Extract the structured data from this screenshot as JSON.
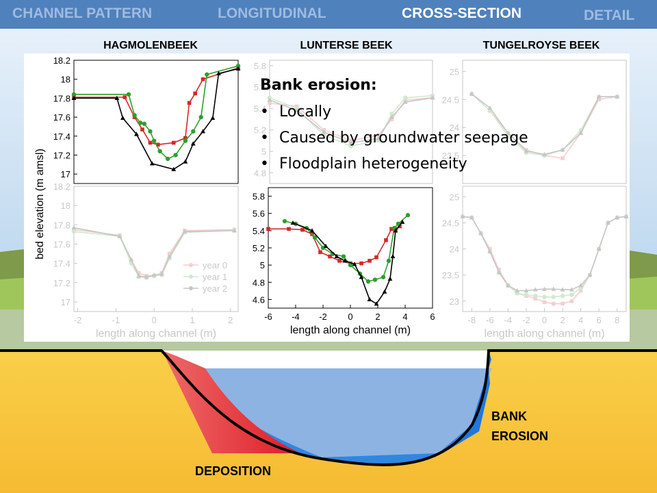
{
  "tabs": [
    {
      "label": "CHANNEL PATTERN",
      "active": false
    },
    {
      "label": "LONGITUDINAL",
      "active": false
    },
    {
      "label": "CROSS-SECTION",
      "active": true
    },
    {
      "label": "DETAIL",
      "active": false
    }
  ],
  "column_titles": [
    "HAGMOLENBEEK",
    "LUNTERSE BEEK",
    "TUNGELROYSE BEEK"
  ],
  "callout": {
    "title": "Bank erosion:",
    "bullets": [
      "Locally",
      "Caused by groundwater seepage",
      "Floodplain heterogeneity"
    ]
  },
  "diagram_labels": {
    "bank": "BANK",
    "erosion": "EROSION",
    "deposition": "DEPOSITION"
  },
  "colors": {
    "tab_bar": "#4f81bd",
    "year0": "#d62728",
    "year1": "#2ca02c",
    "year2": "#000000",
    "water": "#8db3e2",
    "deposition": "#e8383d",
    "erosion": "#1f77e0",
    "sand": "#f7c23c"
  },
  "chart_data": [
    {
      "type": "line",
      "name": "HAGMOLENBEEK",
      "faded": false,
      "ylabel": "bed elevation (m amsl)",
      "xlabel": "",
      "xlim": [
        -2.1,
        2.1
      ],
      "ylim": [
        16.9,
        18.2
      ],
      "xticks": [],
      "yticks": [
        17,
        17.2,
        17.4,
        17.6,
        17.8,
        18,
        18.2
      ],
      "series": [
        {
          "name": "year 0",
          "x": [
            -2.1,
            -0.8,
            -0.55,
            -0.35,
            -0.15,
            0.05,
            0.45,
            0.75,
            0.85,
            1.0,
            1.2,
            2.1
          ],
          "y": [
            17.81,
            17.81,
            17.6,
            17.47,
            17.33,
            17.31,
            17.33,
            17.38,
            17.75,
            17.85,
            18.0,
            18.12
          ]
        },
        {
          "name": "year 1",
          "x": [
            -2.1,
            -0.7,
            -0.55,
            -0.4,
            -0.3,
            -0.15,
            -0.05,
            0.1,
            0.3,
            0.5,
            0.75,
            0.95,
            1.15,
            1.3,
            2.1
          ],
          "y": [
            17.84,
            17.84,
            17.62,
            17.54,
            17.53,
            17.45,
            17.35,
            17.24,
            17.16,
            17.2,
            17.35,
            17.45,
            17.6,
            18.05,
            18.14
          ]
        },
        {
          "name": "year 2",
          "x": [
            -2.1,
            -1.0,
            -0.85,
            -0.5,
            -0.1,
            0.45,
            0.75,
            0.95,
            1.2,
            1.45,
            1.6,
            2.1
          ],
          "y": [
            17.8,
            17.8,
            17.59,
            17.42,
            17.11,
            17.05,
            17.13,
            17.32,
            17.45,
            17.59,
            18.06,
            18.11
          ]
        }
      ]
    },
    {
      "type": "line",
      "name": "LUNTERSE BEEK top",
      "faded": true,
      "ylabel": "",
      "xlabel": "",
      "xlim": [
        -6,
        6
      ],
      "ylim": [
        4.7,
        5.85
      ],
      "xticks": [],
      "yticks": [
        4.8,
        5,
        5.2,
        5.4,
        5.6,
        5.8
      ],
      "series": [
        {
          "name": "year 0",
          "x": [
            -6,
            -4,
            -2,
            0,
            2,
            3,
            4,
            6
          ],
          "y": [
            5.45,
            5.42,
            5.2,
            5.1,
            5.15,
            5.3,
            5.48,
            5.5
          ]
        },
        {
          "name": "year 1",
          "x": [
            -6,
            -4,
            -2,
            0,
            2,
            3,
            4,
            6
          ],
          "y": [
            5.5,
            5.4,
            5.15,
            5.05,
            5.1,
            5.35,
            5.5,
            5.52
          ]
        },
        {
          "name": "year 2",
          "x": [
            -6,
            -4,
            -2,
            0,
            2,
            3,
            4,
            6
          ],
          "y": [
            5.48,
            5.38,
            5.18,
            5.08,
            5.12,
            5.32,
            5.46,
            5.5
          ]
        }
      ]
    },
    {
      "type": "line",
      "name": "TUNGELROYSE BEEK top",
      "faded": true,
      "ylabel": "",
      "xlabel": "",
      "xlim": [
        -9,
        9
      ],
      "ylim": [
        23.0,
        25.2
      ],
      "xticks": [],
      "yticks": [
        23.5,
        24,
        24.5,
        25
      ],
      "series": [
        {
          "name": "year 0",
          "x": [
            -8,
            -6,
            -4,
            -2,
            0,
            2,
            4,
            6,
            8
          ],
          "y": [
            24.6,
            24.3,
            23.9,
            23.6,
            23.5,
            23.45,
            23.9,
            24.5,
            24.55
          ]
        },
        {
          "name": "year 1",
          "x": [
            -8,
            -6,
            -4,
            -2,
            0,
            2,
            4,
            6,
            8
          ],
          "y": [
            24.6,
            24.3,
            23.85,
            23.55,
            23.5,
            23.6,
            23.95,
            24.55,
            24.55
          ]
        },
        {
          "name": "year 2",
          "x": [
            -8,
            -6,
            -4,
            -2,
            0,
            2,
            4,
            6,
            8
          ],
          "y": [
            24.6,
            24.35,
            23.9,
            23.58,
            23.52,
            23.6,
            23.9,
            24.55,
            24.55
          ]
        }
      ]
    },
    {
      "type": "line",
      "name": "HAGMOLENBEEK bottom",
      "faded": true,
      "ylabel": "",
      "xlabel": "length along channel (m)",
      "xlim": [
        -2.1,
        2.2
      ],
      "ylim": [
        16.9,
        18.2
      ],
      "xticks": [
        -2,
        -1,
        0,
        1,
        2
      ],
      "yticks": [
        17,
        17.2,
        17.4,
        17.6,
        17.8,
        18,
        18.2
      ],
      "legend": "bottom-right",
      "series": [
        {
          "name": "year 0",
          "x": [
            -2.1,
            -0.9,
            -0.6,
            -0.4,
            -0.2,
            0,
            0.2,
            0.4,
            0.8,
            2.1
          ],
          "y": [
            17.75,
            17.69,
            17.43,
            17.3,
            17.27,
            17.27,
            17.3,
            17.5,
            17.74,
            17.75
          ]
        },
        {
          "name": "year 1",
          "x": [
            -2.1,
            -0.9,
            -0.6,
            -0.4,
            -0.2,
            0,
            0.2,
            0.4,
            0.8,
            2.1
          ],
          "y": [
            17.73,
            17.68,
            17.4,
            17.26,
            17.25,
            17.27,
            17.28,
            17.45,
            17.72,
            17.74
          ]
        },
        {
          "name": "year 2",
          "x": [
            -2.1,
            -0.9,
            -0.6,
            -0.4,
            -0.2,
            0,
            0.2,
            0.4,
            0.8,
            2.1
          ],
          "y": [
            17.77,
            17.68,
            17.44,
            17.27,
            17.26,
            17.28,
            17.29,
            17.47,
            17.73,
            17.74
          ]
        }
      ]
    },
    {
      "type": "line",
      "name": "LUNTERSE BEEK",
      "faded": false,
      "ylabel": "",
      "xlabel": "length along channel (m)",
      "xlim": [
        -6,
        6
      ],
      "ylim": [
        4.5,
        5.9
      ],
      "xticks": [
        -6,
        -4,
        -2,
        0,
        2,
        4,
        6
      ],
      "yticks": [
        4.6,
        4.8,
        5,
        5.2,
        5.4,
        5.6,
        5.8
      ],
      "series": [
        {
          "name": "year 0",
          "x": [
            -6,
            -4.5,
            -3.5,
            -2.8,
            -2.2,
            -1.5,
            -0.8,
            0,
            0.8,
            1.4,
            1.9,
            2.6,
            3.0,
            3.3,
            3.6
          ],
          "y": [
            5.42,
            5.42,
            5.41,
            5.36,
            5.15,
            5.1,
            5.05,
            5.02,
            5.02,
            5.05,
            5.09,
            5.29,
            5.42,
            5.42,
            5.45
          ]
        },
        {
          "name": "year 1",
          "x": [
            -4.8,
            -4.0,
            -3.2,
            -2.6,
            -2.0,
            -1.3,
            -0.5,
            0,
            0.7,
            1.3,
            1.8,
            2.4,
            2.8,
            3.2,
            3.5,
            4.2
          ],
          "y": [
            5.51,
            5.48,
            5.43,
            5.32,
            5.2,
            5.13,
            5.1,
            5.0,
            4.9,
            4.81,
            4.83,
            4.86,
            5.05,
            5.43,
            5.48,
            5.58
          ]
        },
        {
          "name": "year 2",
          "x": [
            -4.2,
            -2.8,
            -1.8,
            -1.0,
            -0.4,
            0.3,
            0.8,
            1.4,
            1.9,
            2.5,
            2.9,
            3.1,
            3.3,
            3.8
          ],
          "y": [
            5.49,
            5.4,
            5.22,
            5.1,
            5.05,
            5.01,
            4.86,
            4.6,
            4.55,
            4.69,
            4.84,
            5.1,
            5.4,
            5.5
          ]
        }
      ]
    },
    {
      "type": "line",
      "name": "TUNGELROYSE BEEK bottom",
      "faded": true,
      "ylabel": "",
      "xlabel": "length along channel (m)",
      "xlim": [
        -9,
        9
      ],
      "ylim": [
        22.8,
        25.2
      ],
      "xticks": [
        -8,
        -6,
        -4,
        -2,
        0,
        2,
        4,
        6,
        8
      ],
      "yticks": [
        23,
        23.5,
        24,
        24.5,
        25
      ],
      "series": [
        {
          "name": "year 0",
          "x": [
            -9,
            -8,
            -7,
            -6,
            -5,
            -4,
            -3,
            -2,
            -1,
            0,
            1,
            2,
            3,
            4,
            5,
            6,
            7,
            8,
            9
          ],
          "y": [
            24.62,
            24.6,
            24.3,
            24.0,
            23.6,
            23.3,
            23.15,
            23.1,
            23.05,
            22.98,
            22.95,
            22.95,
            23.0,
            23.2,
            23.5,
            24.0,
            24.5,
            24.6,
            24.62
          ]
        },
        {
          "name": "year 1",
          "x": [
            -9,
            -8,
            -7,
            -6,
            -5,
            -4,
            -3,
            -2,
            -1,
            0,
            1,
            2,
            3,
            4,
            5,
            6,
            7,
            8,
            9
          ],
          "y": [
            24.62,
            24.6,
            24.3,
            23.95,
            23.55,
            23.3,
            23.15,
            23.12,
            23.1,
            23.08,
            23.08,
            23.1,
            23.12,
            23.25,
            23.5,
            24.0,
            24.5,
            24.6,
            24.62
          ]
        },
        {
          "name": "year 2",
          "x": [
            -9,
            -8,
            -7,
            -6,
            -5,
            -4,
            -3,
            -2,
            -1,
            0,
            1,
            2,
            3,
            4,
            5,
            6,
            7,
            8,
            9
          ],
          "y": [
            24.62,
            24.6,
            24.3,
            23.95,
            23.55,
            23.3,
            23.2,
            23.2,
            23.22,
            23.23,
            23.23,
            23.22,
            23.22,
            23.3,
            23.5,
            24.0,
            24.5,
            24.6,
            24.62
          ]
        }
      ]
    }
  ]
}
